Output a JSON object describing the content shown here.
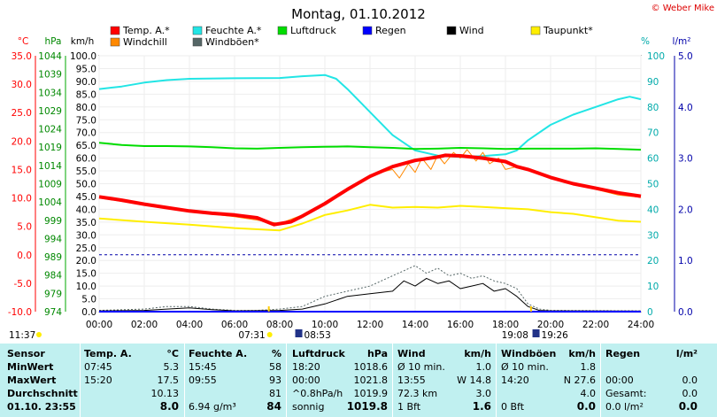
{
  "credit": "© Weber Mike",
  "chart_data": {
    "type": "line",
    "title": "Montag, 01.10.2012",
    "x": [
      "00:00",
      "02:00",
      "04:00",
      "06:00",
      "08:00",
      "10:00",
      "12:00",
      "14:00",
      "16:00",
      "18:00",
      "20:00",
      "22:00",
      "24:00"
    ],
    "xlim": [
      0,
      24
    ],
    "axes": {
      "temp_c": {
        "label": "°C",
        "ticks": [
          "35.0",
          "30.0",
          "25.0",
          "20.0",
          "15.0",
          "10.0",
          "5.0",
          "0.0",
          "-5.0",
          "-10.0"
        ],
        "range": [
          -10,
          35
        ],
        "color": "#ff0000"
      },
      "pressure_hpa": {
        "label": "hPa",
        "ticks": [
          "1044",
          "1039",
          "1034",
          "1029",
          "1024",
          "1019",
          "1014",
          "1009",
          "1004",
          "999",
          "994",
          "989",
          "984",
          "979",
          "974"
        ],
        "range": [
          974,
          1044
        ],
        "color": "#008800"
      },
      "wind_kmh": {
        "label": "km/h",
        "ticks": [
          "100.0",
          "95.0",
          "90.0",
          "85.0",
          "80.0",
          "75.0",
          "70.0",
          "65.0",
          "60.0",
          "55.0",
          "50.0",
          "45.0",
          "40.0",
          "35.0",
          "30.0",
          "25.0",
          "20.0",
          "15.0",
          "10.0",
          "5.0",
          "0.0"
        ],
        "range": [
          0,
          100
        ],
        "color": "#000000"
      },
      "humidity_pct": {
        "label": "%",
        "ticks": [
          "100",
          "90",
          "80",
          "70",
          "60",
          "50",
          "40",
          "30",
          "20",
          "10",
          "0"
        ],
        "range": [
          0,
          100
        ],
        "color": "#00aaaa"
      },
      "rain_lm2": {
        "label": "l/m²",
        "ticks": [
          "5.0",
          "4.0",
          "3.0",
          "2.0",
          "1.0",
          "0.0"
        ],
        "range": [
          0,
          5
        ],
        "color": "#0000aa"
      }
    },
    "legend": [
      {
        "name": "Temp. A.*",
        "color": "#ff0000"
      },
      {
        "name": "Feuchte A.*",
        "color": "#22e5e5"
      },
      {
        "name": "Luftdruck",
        "color": "#00dd00"
      },
      {
        "name": "Regen",
        "color": "#0000ff"
      },
      {
        "name": "Wind",
        "color": "#000000"
      },
      {
        "name": "Taupunkt*",
        "color": "#ffee00"
      },
      {
        "name": "Windchill",
        "color": "#ff8800"
      },
      {
        "name": "Windböen*",
        "color": "#556666"
      }
    ],
    "legend_position": "top",
    "grid": true,
    "series": [
      {
        "name": "Feuchte A.*",
        "axis": "humidity_pct",
        "color": "#22e5e5",
        "width": 2,
        "points": [
          [
            0,
            87
          ],
          [
            1,
            88
          ],
          [
            2,
            89.5
          ],
          [
            3,
            90.5
          ],
          [
            4,
            91
          ],
          [
            6,
            91.2
          ],
          [
            8,
            91.3
          ],
          [
            9,
            92
          ],
          [
            10,
            92.5
          ],
          [
            10.5,
            91
          ],
          [
            11,
            87
          ],
          [
            12,
            78
          ],
          [
            13,
            69
          ],
          [
            14,
            63
          ],
          [
            15,
            61
          ],
          [
            16,
            60.5
          ],
          [
            17,
            60.8
          ],
          [
            18,
            61.5
          ],
          [
            18.5,
            63
          ],
          [
            19,
            67
          ],
          [
            20,
            73
          ],
          [
            21,
            77
          ],
          [
            22,
            80
          ],
          [
            23,
            83
          ],
          [
            23.5,
            84
          ],
          [
            24,
            83
          ]
        ]
      },
      {
        "name": "Luftdruck",
        "axis": "pressure_hpa",
        "color": "#00dd00",
        "width": 2,
        "points": [
          [
            0,
            1020.2
          ],
          [
            1,
            1019.6
          ],
          [
            2,
            1019.3
          ],
          [
            3,
            1019.3
          ],
          [
            4,
            1019.2
          ],
          [
            5,
            1019.0
          ],
          [
            6,
            1018.7
          ],
          [
            7,
            1018.6
          ],
          [
            8,
            1018.8
          ],
          [
            9,
            1019.0
          ],
          [
            10,
            1019.1
          ],
          [
            11,
            1019.2
          ],
          [
            12,
            1019.0
          ],
          [
            13,
            1018.8
          ],
          [
            14,
            1018.5
          ],
          [
            15,
            1018.6
          ],
          [
            16,
            1018.8
          ],
          [
            17,
            1018.7
          ],
          [
            18,
            1018.5
          ],
          [
            19,
            1018.6
          ],
          [
            20,
            1018.6
          ],
          [
            21,
            1018.6
          ],
          [
            22,
            1018.7
          ],
          [
            23,
            1018.5
          ],
          [
            24,
            1018.3
          ]
        ]
      },
      {
        "name": "Taupunkt*",
        "axis": "temp_c",
        "color": "#ffee00",
        "width": 2,
        "points": [
          [
            0,
            6.4
          ],
          [
            2,
            5.8
          ],
          [
            4,
            5.3
          ],
          [
            6,
            4.7
          ],
          [
            8,
            4.3
          ],
          [
            9,
            5.5
          ],
          [
            10,
            7.0
          ],
          [
            11,
            7.8
          ],
          [
            12,
            8.8
          ],
          [
            13,
            8.3
          ],
          [
            14,
            8.4
          ],
          [
            15,
            8.3
          ],
          [
            16,
            8.6
          ],
          [
            17,
            8.4
          ],
          [
            18,
            8.2
          ],
          [
            19,
            8.0
          ],
          [
            20,
            7.5
          ],
          [
            21,
            7.2
          ],
          [
            22,
            6.6
          ],
          [
            23,
            6.0
          ],
          [
            24,
            5.8
          ]
        ]
      },
      {
        "name": "Windchill",
        "axis": "temp_c",
        "color": "#ff8800",
        "width": 1,
        "points": [
          [
            0,
            10
          ],
          [
            2,
            8.8
          ],
          [
            4,
            7.6
          ],
          [
            6,
            6.7
          ],
          [
            8,
            5.5
          ],
          [
            9,
            7.0
          ],
          [
            10,
            9.0
          ],
          [
            11,
            11.5
          ],
          [
            12,
            14.0
          ],
          [
            13,
            15.0
          ],
          [
            13.3,
            13.5
          ],
          [
            13.7,
            16.0
          ],
          [
            14,
            14.5
          ],
          [
            14.3,
            17.0
          ],
          [
            14.7,
            15.0
          ],
          [
            15,
            17.5
          ],
          [
            15.3,
            16.0
          ],
          [
            15.7,
            18.0
          ],
          [
            16,
            17.0
          ],
          [
            16.3,
            18.5
          ],
          [
            16.7,
            16.5
          ],
          [
            17,
            18.0
          ],
          [
            17.3,
            16.0
          ],
          [
            17.7,
            17.0
          ],
          [
            18,
            15.0
          ],
          [
            18.5,
            15.5
          ],
          [
            19,
            14.8
          ],
          [
            20,
            13.5
          ],
          [
            21,
            12.5
          ],
          [
            22,
            11.5
          ],
          [
            23,
            10.5
          ],
          [
            24,
            10.1
          ]
        ]
      },
      {
        "name": "Temp. A.*",
        "axis": "temp_c",
        "color": "#ff0000",
        "width": 4,
        "points": [
          [
            0,
            10.2
          ],
          [
            1,
            9.6
          ],
          [
            2,
            8.9
          ],
          [
            3,
            8.3
          ],
          [
            4,
            7.7
          ],
          [
            5,
            7.3
          ],
          [
            6,
            7.0
          ],
          [
            7,
            6.5
          ],
          [
            7.75,
            5.3
          ],
          [
            8.5,
            5.8
          ],
          [
            9,
            6.8
          ],
          [
            10,
            9.0
          ],
          [
            11,
            11.5
          ],
          [
            12,
            13.8
          ],
          [
            13,
            15.5
          ],
          [
            14,
            16.6
          ],
          [
            15,
            17.2
          ],
          [
            15.33,
            17.5
          ],
          [
            16,
            17.4
          ],
          [
            17,
            17.0
          ],
          [
            18,
            16.4
          ],
          [
            18.5,
            15.5
          ],
          [
            19,
            15.0
          ],
          [
            20,
            13.6
          ],
          [
            21,
            12.5
          ],
          [
            22,
            11.7
          ],
          [
            23,
            10.9
          ],
          [
            24,
            10.3
          ]
        ]
      },
      {
        "name": "Windböen*",
        "axis": "wind_kmh",
        "color": "#556666",
        "width": 1,
        "dash": "2,2",
        "points": [
          [
            0,
            0.5
          ],
          [
            2,
            1
          ],
          [
            3,
            2
          ],
          [
            4,
            2
          ],
          [
            5,
            1
          ],
          [
            6,
            0.5
          ],
          [
            7,
            0.5
          ],
          [
            8,
            1
          ],
          [
            9,
            2
          ],
          [
            10,
            6
          ],
          [
            11,
            8
          ],
          [
            12,
            10
          ],
          [
            13,
            14
          ],
          [
            13.5,
            16
          ],
          [
            14,
            18
          ],
          [
            14.5,
            15
          ],
          [
            15,
            17
          ],
          [
            15.5,
            14
          ],
          [
            16,
            15
          ],
          [
            16.5,
            13
          ],
          [
            17,
            14
          ],
          [
            17.5,
            12
          ],
          [
            18,
            11
          ],
          [
            18.5,
            9
          ],
          [
            19,
            3
          ],
          [
            19.5,
            1
          ],
          [
            20,
            0.5
          ],
          [
            24,
            0.3
          ]
        ]
      },
      {
        "name": "Wind",
        "axis": "wind_kmh",
        "color": "#000000",
        "width": 1,
        "points": [
          [
            0,
            0.3
          ],
          [
            2,
            0.5
          ],
          [
            3,
            1
          ],
          [
            4,
            1.5
          ],
          [
            5,
            0.8
          ],
          [
            6,
            0.3
          ],
          [
            8,
            0.5
          ],
          [
            9,
            1
          ],
          [
            10,
            3
          ],
          [
            11,
            6
          ],
          [
            12,
            7
          ],
          [
            13,
            8
          ],
          [
            13.5,
            12
          ],
          [
            14,
            10
          ],
          [
            14.5,
            13
          ],
          [
            15,
            11
          ],
          [
            15.5,
            12
          ],
          [
            16,
            9
          ],
          [
            16.5,
            10
          ],
          [
            17,
            11
          ],
          [
            17.5,
            8
          ],
          [
            18,
            9
          ],
          [
            18.5,
            6
          ],
          [
            19,
            2
          ],
          [
            19.5,
            0.5
          ],
          [
            20,
            0.3
          ],
          [
            24,
            0.2
          ]
        ]
      },
      {
        "name": "Regen",
        "axis": "rain_lm2",
        "color": "#0000ff",
        "width": 2,
        "points": [
          [
            0,
            0
          ],
          [
            24,
            0
          ]
        ]
      }
    ],
    "annotations": {
      "left": "11:37",
      "sunrise": "07:31",
      "moonset": "08:53",
      "sunset": "19:08",
      "moonrise": "19:26"
    }
  },
  "stats": {
    "headers": {
      "sensor": "Sensor",
      "temp": "Temp. A.",
      "temp_u": "°C",
      "hum": "Feuchte A.",
      "hum_u": "%",
      "press": "Luftdruck",
      "press_u": "hPa",
      "wind": "Wind",
      "wind_u": "km/h",
      "gust": "Windböen",
      "gust_u": "km/h",
      "rain": "Regen",
      "rain_u": "l/m²"
    },
    "rows": [
      {
        "label": "MinWert",
        "temp_t": "07:45",
        "temp_v": "5.3",
        "hum_t": "15:45",
        "hum_v": "58",
        "press_t": "18:20",
        "press_v": "1018.6",
        "wind_t": "Ø 10 min.",
        "wind_v": "1.0",
        "gust_t": "Ø 10 min.",
        "gust_v": "1.8",
        "rain_t": "",
        "rain_v": ""
      },
      {
        "label": "MaxWert",
        "temp_t": "15:20",
        "temp_v": "17.5",
        "hum_t": "09:55",
        "hum_v": "93",
        "press_t": "00:00",
        "press_v": "1021.8",
        "wind_t": "13:55",
        "wind_v": "W 14.8",
        "gust_t": "14:20",
        "gust_v": "N 27.6",
        "rain_t": "00:00",
        "rain_v": "0.0"
      },
      {
        "label": "Durchschnitt",
        "temp_t": "",
        "temp_v": "10.13",
        "hum_t": "",
        "hum_v": "81",
        "press_t": "^0.8hPa/h",
        "press_v": "1019.9",
        "wind_t": "72.3 km",
        "wind_v": "3.0",
        "gust_t": "",
        "gust_v": "4.0",
        "rain_t": "Gesamt:",
        "rain_v": "0.0"
      },
      {
        "label": "01.10. 23:55",
        "temp_t": "",
        "temp_v": "8.0",
        "hum_t": "6.94 g/m³",
        "hum_v": "84",
        "press_t": "sonnig",
        "press_v": "1019.8",
        "wind_t": "1 Bft",
        "wind_v": "1.6",
        "gust_t": "0 Bft",
        "gust_v": "0.0",
        "rain_t": "0.0 l/m²",
        "rain_v": "0.0"
      }
    ]
  }
}
